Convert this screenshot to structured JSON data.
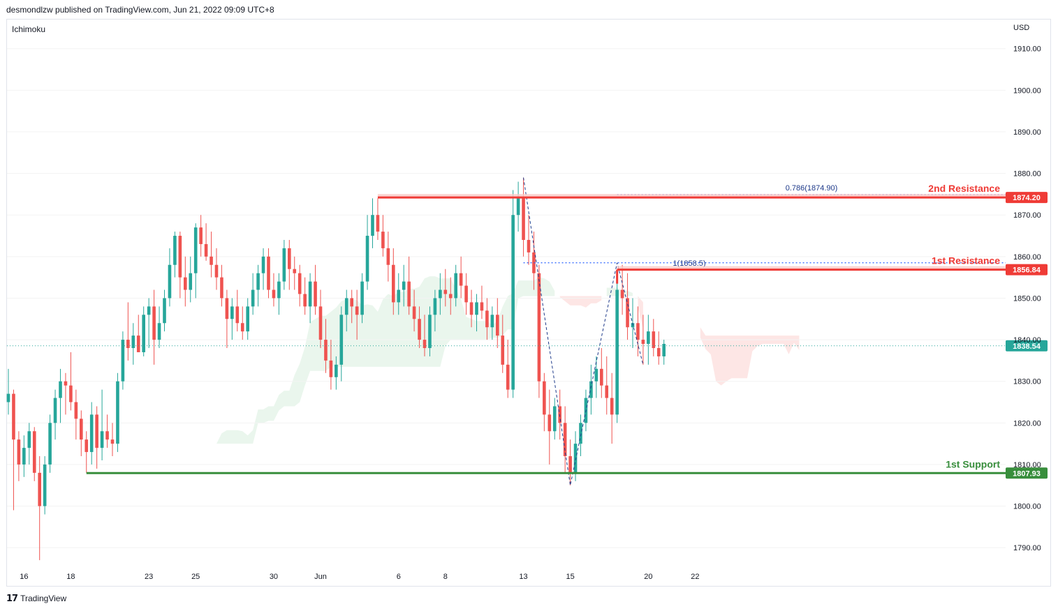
{
  "header": {
    "publisher_text": "desmondlzw published on TradingView.com, Jun 21, 2022 09:09 UTC+8"
  },
  "indicator": {
    "label": "Ichimoku"
  },
  "axis": {
    "currency": "USD"
  },
  "footer": {
    "brand": "TradingView"
  },
  "colors": {
    "up": "#26a69a",
    "down": "#ef5350",
    "resistance": "#ef3b36",
    "support": "#388e3c",
    "fib": "#2962ff",
    "cloud_red": "#fde2e0",
    "cloud_green": "#e6f4ea"
  },
  "chart_data": {
    "type": "candlestick",
    "ylim": [
      1785,
      1917
    ],
    "y_ticks": [
      {
        "value": 1910,
        "label": "1910.00"
      },
      {
        "value": 1900,
        "label": "1900.00"
      },
      {
        "value": 1890,
        "label": "1890.00"
      },
      {
        "value": 1880,
        "label": "1880.00"
      },
      {
        "value": 1870,
        "label": "1870.00"
      },
      {
        "value": 1860,
        "label": "1860.00"
      },
      {
        "value": 1850,
        "label": "1850.00"
      },
      {
        "value": 1840,
        "label": "1840.00"
      },
      {
        "value": 1830,
        "label": "1830.00"
      },
      {
        "value": 1820,
        "label": "1820.00"
      },
      {
        "value": 1810,
        "label": "1810.00"
      },
      {
        "value": 1800,
        "label": "1800.00"
      },
      {
        "value": 1790,
        "label": "1790.00"
      }
    ],
    "x_ticks": [
      {
        "index": 3,
        "label": "16"
      },
      {
        "index": 12,
        "label": "18"
      },
      {
        "index": 27,
        "label": "23"
      },
      {
        "index": 36,
        "label": "25"
      },
      {
        "index": 51,
        "label": "30"
      },
      {
        "index": 60,
        "label": "Jun"
      },
      {
        "index": 75,
        "label": "6"
      },
      {
        "index": 84,
        "label": "8"
      },
      {
        "index": 99,
        "label": "13"
      },
      {
        "index": 108,
        "label": "15"
      },
      {
        "index": 123,
        "label": "20"
      },
      {
        "index": 132,
        "label": "22"
      }
    ],
    "candles": [
      [
        1825,
        1833,
        1822,
        1827
      ],
      [
        1827,
        1828,
        1799,
        1816
      ],
      [
        1816,
        1818,
        1806,
        1810
      ],
      [
        1810,
        1817,
        1807,
        1814
      ],
      [
        1814,
        1820,
        1810,
        1818
      ],
      [
        1818,
        1819,
        1806,
        1808
      ],
      [
        1808,
        1812,
        1787,
        1800
      ],
      [
        1800,
        1812,
        1798,
        1810
      ],
      [
        1810,
        1822,
        1808,
        1820
      ],
      [
        1820,
        1828,
        1816,
        1826
      ],
      [
        1826,
        1833,
        1820,
        1830
      ],
      [
        1830,
        1832,
        1822,
        1829
      ],
      [
        1829,
        1837,
        1823,
        1825
      ],
      [
        1825,
        1828,
        1816,
        1821
      ],
      [
        1821,
        1823,
        1812,
        1816
      ],
      [
        1816,
        1818,
        1808,
        1813
      ],
      [
        1813,
        1825,
        1810,
        1822
      ],
      [
        1822,
        1824,
        1809,
        1814
      ],
      [
        1814,
        1828,
        1811,
        1818
      ],
      [
        1818,
        1822,
        1814,
        1816
      ],
      [
        1816,
        1820,
        1812,
        1815
      ],
      [
        1815,
        1832,
        1813,
        1830
      ],
      [
        1830,
        1842,
        1828,
        1840
      ],
      [
        1840,
        1849,
        1835,
        1838
      ],
      [
        1838,
        1844,
        1834,
        1841
      ],
      [
        1841,
        1846,
        1837,
        1837
      ],
      [
        1837,
        1848,
        1836,
        1846
      ],
      [
        1846,
        1850,
        1838,
        1848
      ],
      [
        1848,
        1852,
        1834,
        1840
      ],
      [
        1840,
        1848,
        1838,
        1844
      ],
      [
        1844,
        1852,
        1842,
        1850
      ],
      [
        1850,
        1862,
        1848,
        1858
      ],
      [
        1858,
        1866,
        1855,
        1865
      ],
      [
        1865,
        1866,
        1850,
        1855
      ],
      [
        1855,
        1860,
        1848,
        1852
      ],
      [
        1852,
        1860,
        1849,
        1856
      ],
      [
        1856,
        1868,
        1850,
        1867
      ],
      [
        1867,
        1870,
        1860,
        1863
      ],
      [
        1863,
        1868,
        1859,
        1860
      ],
      [
        1860,
        1866,
        1855,
        1858
      ],
      [
        1858,
        1862,
        1852,
        1855
      ],
      [
        1855,
        1858,
        1848,
        1850
      ],
      [
        1850,
        1852,
        1838,
        1845
      ],
      [
        1845,
        1850,
        1840,
        1848
      ],
      [
        1848,
        1852,
        1842,
        1844
      ],
      [
        1844,
        1848,
        1840,
        1842
      ],
      [
        1842,
        1850,
        1840,
        1848
      ],
      [
        1848,
        1856,
        1846,
        1852
      ],
      [
        1852,
        1858,
        1848,
        1856
      ],
      [
        1856,
        1862,
        1852,
        1860
      ],
      [
        1860,
        1862,
        1850,
        1852
      ],
      [
        1852,
        1856,
        1848,
        1850
      ],
      [
        1850,
        1856,
        1846,
        1854
      ],
      [
        1854,
        1864,
        1852,
        1862
      ],
      [
        1862,
        1864,
        1852,
        1857
      ],
      [
        1857,
        1860,
        1852,
        1856
      ],
      [
        1856,
        1858,
        1848,
        1851
      ],
      [
        1851,
        1855,
        1846,
        1848
      ],
      [
        1848,
        1856,
        1844,
        1854
      ],
      [
        1854,
        1858,
        1846,
        1848
      ],
      [
        1848,
        1852,
        1838,
        1840
      ],
      [
        1840,
        1845,
        1832,
        1835
      ],
      [
        1835,
        1840,
        1828,
        1831
      ],
      [
        1831,
        1836,
        1828,
        1834
      ],
      [
        1834,
        1848,
        1830,
        1846
      ],
      [
        1846,
        1852,
        1842,
        1850
      ],
      [
        1850,
        1852,
        1844,
        1848
      ],
      [
        1848,
        1852,
        1840,
        1846
      ],
      [
        1846,
        1856,
        1844,
        1854
      ],
      [
        1854,
        1870,
        1852,
        1865
      ],
      [
        1865,
        1874,
        1862,
        1870
      ],
      [
        1870,
        1874,
        1864,
        1866
      ],
      [
        1866,
        1870,
        1860,
        1862
      ],
      [
        1862,
        1866,
        1854,
        1858
      ],
      [
        1858,
        1862,
        1846,
        1849
      ],
      [
        1849,
        1856,
        1846,
        1852
      ],
      [
        1852,
        1858,
        1848,
        1854
      ],
      [
        1854,
        1860,
        1846,
        1848
      ],
      [
        1848,
        1852,
        1842,
        1845
      ],
      [
        1845,
        1848,
        1838,
        1840
      ],
      [
        1840,
        1846,
        1836,
        1838
      ],
      [
        1838,
        1848,
        1836,
        1846
      ],
      [
        1846,
        1852,
        1842,
        1850
      ],
      [
        1850,
        1856,
        1846,
        1852
      ],
      [
        1852,
        1857,
        1848,
        1851
      ],
      [
        1851,
        1855,
        1846,
        1850
      ],
      [
        1850,
        1858,
        1848,
        1856
      ],
      [
        1856,
        1860,
        1850,
        1853
      ],
      [
        1853,
        1856,
        1846,
        1849
      ],
      [
        1849,
        1852,
        1843,
        1846
      ],
      [
        1846,
        1851,
        1842,
        1849
      ],
      [
        1849,
        1853,
        1845,
        1847
      ],
      [
        1847,
        1850,
        1840,
        1843
      ],
      [
        1843,
        1848,
        1840,
        1846
      ],
      [
        1846,
        1850,
        1838,
        1841
      ],
      [
        1841,
        1846,
        1832,
        1834
      ],
      [
        1834,
        1840,
        1826,
        1828
      ],
      [
        1828,
        1876,
        1826,
        1870
      ],
      [
        1870,
        1878,
        1866,
        1874
      ],
      [
        1874,
        1879,
        1860,
        1864
      ],
      [
        1864,
        1870,
        1858,
        1861
      ],
      [
        1861,
        1866,
        1852,
        1856
      ],
      [
        1856,
        1858,
        1826,
        1830
      ],
      [
        1830,
        1832,
        1818,
        1822
      ],
      [
        1822,
        1828,
        1810,
        1818
      ],
      [
        1818,
        1826,
        1816,
        1824
      ],
      [
        1824,
        1828,
        1816,
        1820
      ],
      [
        1820,
        1824,
        1808,
        1812
      ],
      [
        1812,
        1816,
        1805,
        1808
      ],
      [
        1808,
        1818,
        1806,
        1815
      ],
      [
        1815,
        1822,
        1812,
        1820
      ],
      [
        1820,
        1828,
        1818,
        1826
      ],
      [
        1826,
        1834,
        1822,
        1830
      ],
      [
        1830,
        1836,
        1826,
        1833
      ],
      [
        1833,
        1838,
        1826,
        1829
      ],
      [
        1829,
        1836,
        1822,
        1826
      ],
      [
        1826,
        1832,
        1815,
        1822
      ],
      [
        1822,
        1856,
        1820,
        1852
      ],
      [
        1852,
        1858,
        1846,
        1850
      ],
      [
        1850,
        1856,
        1840,
        1843
      ],
      [
        1843,
        1850,
        1838,
        1844
      ],
      [
        1844,
        1848,
        1836,
        1840
      ],
      [
        1840,
        1846,
        1834,
        1839
      ],
      [
        1839,
        1846,
        1834,
        1842
      ],
      [
        1842,
        1845,
        1836,
        1838
      ],
      [
        1838,
        1842,
        1834,
        1836
      ],
      [
        1836,
        1840,
        1834,
        1839
      ]
    ],
    "levels": [
      {
        "name": "2nd Resistance",
        "value": 1874.2,
        "label": "1874.20",
        "start_index": 71,
        "kind": "resistance"
      },
      {
        "name": "1st Resistance",
        "value": 1856.84,
        "label": "1856.84",
        "start_index": 117,
        "kind": "resistance"
      },
      {
        "name": "1st Support",
        "value": 1807.93,
        "label": "1807.93",
        "start_index": 15,
        "kind": "support"
      }
    ],
    "current_price": {
      "value": 1838.54,
      "label": "1838.54"
    },
    "fib_levels": [
      {
        "label": "0.786(1874.90)",
        "value": 1874.9,
        "start_index": 117
      },
      {
        "label": "1(1858.5)",
        "value": 1858.5,
        "start_index": 99
      }
    ]
  }
}
